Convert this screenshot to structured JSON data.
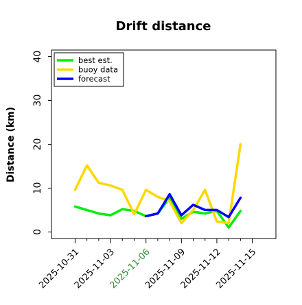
{
  "chart_data": {
    "type": "line",
    "title": "Drift distance",
    "xlabel": "",
    "ylabel": "Distance (km)",
    "ylim": [
      -1.5,
      41.5
    ],
    "xlim": [
      "2025-10-29",
      "2025-11-17"
    ],
    "yticks": [
      0,
      10,
      20,
      30,
      40
    ],
    "xticks": [
      {
        "date": "2025-10-31",
        "label": "2025-10-31",
        "color": "#000000"
      },
      {
        "date": "2025-11-03",
        "label": "2025-11-03",
        "color": "#000000"
      },
      {
        "date": "2025-11-06",
        "label": "2025-11-06",
        "color": "#2e8b2e"
      },
      {
        "date": "2025-11-09",
        "label": "2025-11-09",
        "color": "#000000"
      },
      {
        "date": "2025-11-12",
        "label": "2025-11-12",
        "color": "#000000"
      },
      {
        "date": "2025-11-15",
        "label": "2025-11-15",
        "color": "#000000"
      }
    ],
    "grid": false,
    "legend": "top-left",
    "series": [
      {
        "name": "best est.",
        "color": "#00ee00",
        "points": [
          {
            "x": "2025-10-31",
            "y": 5.8
          },
          {
            "x": "2025-11-02",
            "y": 4.2
          },
          {
            "x": "2025-11-03",
            "y": 3.8
          },
          {
            "x": "2025-11-04",
            "y": 5.2
          },
          {
            "x": "2025-11-05",
            "y": 4.8
          },
          {
            "x": "2025-11-06",
            "y": 3.6
          },
          {
            "x": "2025-11-07",
            "y": 4.2
          },
          {
            "x": "2025-11-08",
            "y": 7.8
          },
          {
            "x": "2025-11-09",
            "y": 3.0
          },
          {
            "x": "2025-11-10",
            "y": 4.6
          },
          {
            "x": "2025-11-11",
            "y": 4.2
          },
          {
            "x": "2025-11-12",
            "y": 4.8
          },
          {
            "x": "2025-11-13",
            "y": 1.0
          },
          {
            "x": "2025-11-14",
            "y": 4.8
          }
        ]
      },
      {
        "name": "buoy data",
        "color": "#ffd700",
        "points": [
          {
            "x": "2025-10-31",
            "y": 9.6
          },
          {
            "x": "2025-11-01",
            "y": 15.2
          },
          {
            "x": "2025-11-02",
            "y": 11.2
          },
          {
            "x": "2025-11-03",
            "y": 10.6
          },
          {
            "x": "2025-11-04",
            "y": 9.6
          },
          {
            "x": "2025-11-05",
            "y": 4.0
          },
          {
            "x": "2025-11-06",
            "y": 9.6
          },
          {
            "x": "2025-11-07",
            "y": 8.0
          },
          {
            "x": "2025-11-08",
            "y": 7.0
          },
          {
            "x": "2025-11-09",
            "y": 2.0
          },
          {
            "x": "2025-11-10",
            "y": 5.0
          },
          {
            "x": "2025-11-11",
            "y": 9.6
          },
          {
            "x": "2025-11-12",
            "y": 2.4
          },
          {
            "x": "2025-11-13",
            "y": 2.0
          },
          {
            "x": "2025-11-14",
            "y": 20.0
          }
        ]
      },
      {
        "name": "forecast",
        "color": "#0000ff",
        "points": [
          {
            "x": "2025-11-06",
            "y": 3.6
          },
          {
            "x": "2025-11-07",
            "y": 4.2
          },
          {
            "x": "2025-11-08",
            "y": 8.6
          },
          {
            "x": "2025-11-09",
            "y": 3.8
          },
          {
            "x": "2025-11-10",
            "y": 6.2
          },
          {
            "x": "2025-11-11",
            "y": 5.0
          },
          {
            "x": "2025-11-12",
            "y": 5.0
          },
          {
            "x": "2025-11-13",
            "y": 3.4
          },
          {
            "x": "2025-11-14",
            "y": 7.8
          }
        ]
      }
    ]
  }
}
